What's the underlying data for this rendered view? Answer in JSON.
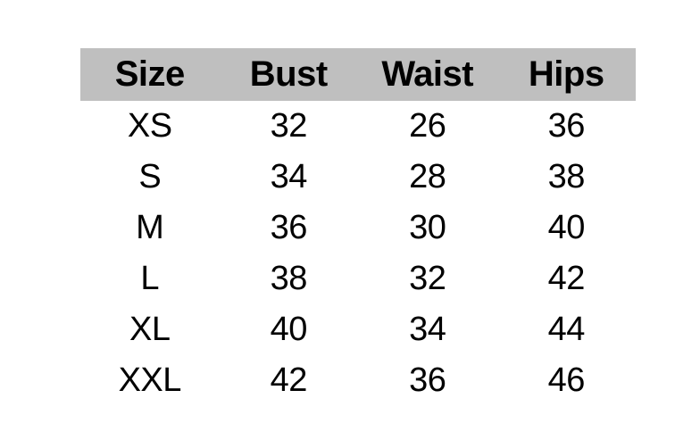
{
  "chart_data": {
    "type": "table",
    "title": "",
    "columns": [
      "Size",
      "Bust",
      "Waist",
      "Hips"
    ],
    "rows": [
      [
        "XS",
        "32",
        "26",
        "36"
      ],
      [
        "S",
        "34",
        "28",
        "38"
      ],
      [
        "M",
        "36",
        "30",
        "40"
      ],
      [
        "L",
        "38",
        "32",
        "42"
      ],
      [
        "XL",
        "40",
        "34",
        "44"
      ],
      [
        "XXL",
        "42",
        "36",
        "46"
      ]
    ],
    "layout": {
      "header_bg": "#bfbfbf",
      "text_color": "#000000",
      "page_bg": "#ffffff",
      "gridlines": "none",
      "alignment": "center"
    }
  }
}
